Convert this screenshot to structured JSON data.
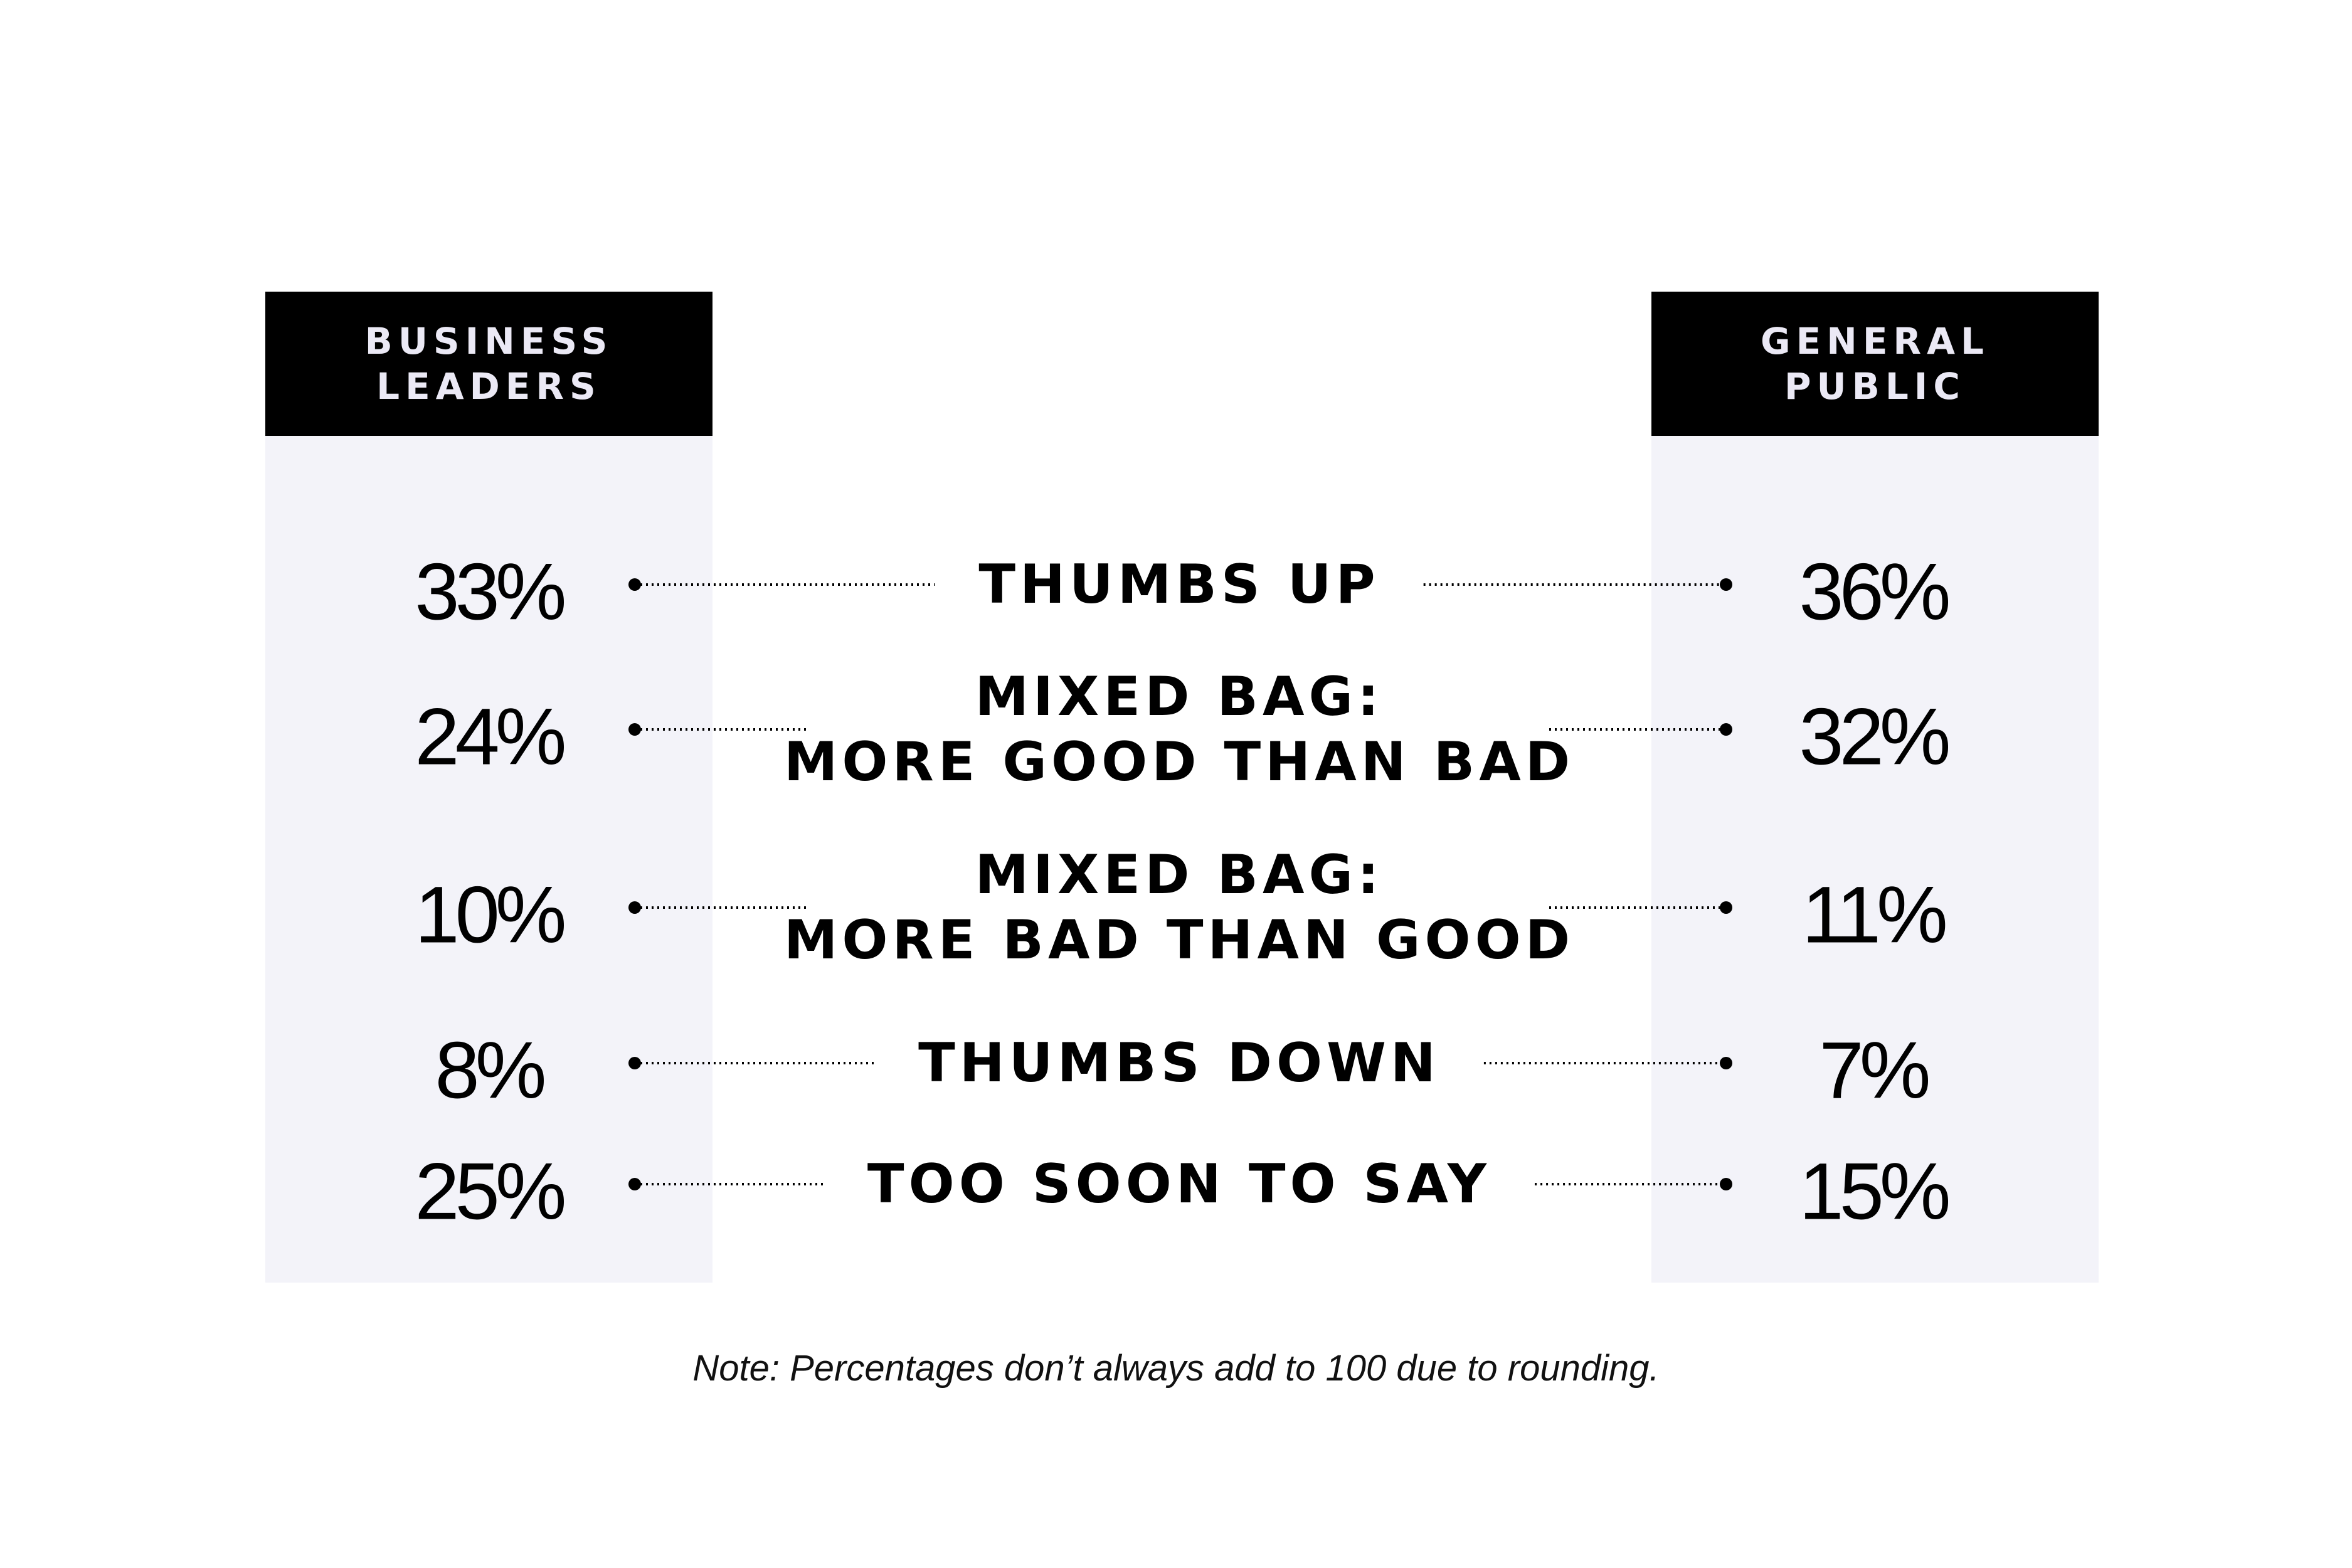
{
  "chart_data": {
    "type": "table",
    "columns": [
      "BUSINESS\nLEADERS",
      "GENERAL\nPUBLIC"
    ],
    "column_header_lines": [
      [
        "BUSINESS",
        "LEADERS"
      ],
      [
        "GENERAL",
        "PUBLIC"
      ]
    ],
    "categories": [
      "THUMBS UP",
      "MIXED BAG:\nMORE GOOD THAN BAD",
      "MIXED BAG:\nMORE BAD THAN GOOD",
      "THUMBS DOWN",
      "TOO SOON TO SAY"
    ],
    "category_lines": [
      [
        "THUMBS UP"
      ],
      [
        "MIXED BAG:",
        "MORE GOOD THAN BAD"
      ],
      [
        "MIXED BAG:",
        "MORE BAD THAN GOOD"
      ],
      [
        "THUMBS DOWN"
      ],
      [
        "TOO SOON TO SAY"
      ]
    ],
    "series": [
      {
        "name": "BUSINESS LEADERS",
        "values": [
          33,
          24,
          10,
          8,
          25
        ]
      },
      {
        "name": "GENERAL PUBLIC",
        "values": [
          36,
          32,
          11,
          7,
          15
        ]
      }
    ],
    "value_labels": [
      [
        "33%",
        "24%",
        "10%",
        "8%",
        "25%"
      ],
      [
        "36%",
        "32%",
        "11%",
        "7%",
        "15%"
      ]
    ],
    "unit": "%"
  },
  "footer": {
    "note": "Note: Percentages don’t always add to 100 due to rounding."
  },
  "colors": {
    "header_bg": "#000000",
    "header_text": "#ebe9f5",
    "panel_bg": "#f3f3f9",
    "text": "#000000"
  }
}
